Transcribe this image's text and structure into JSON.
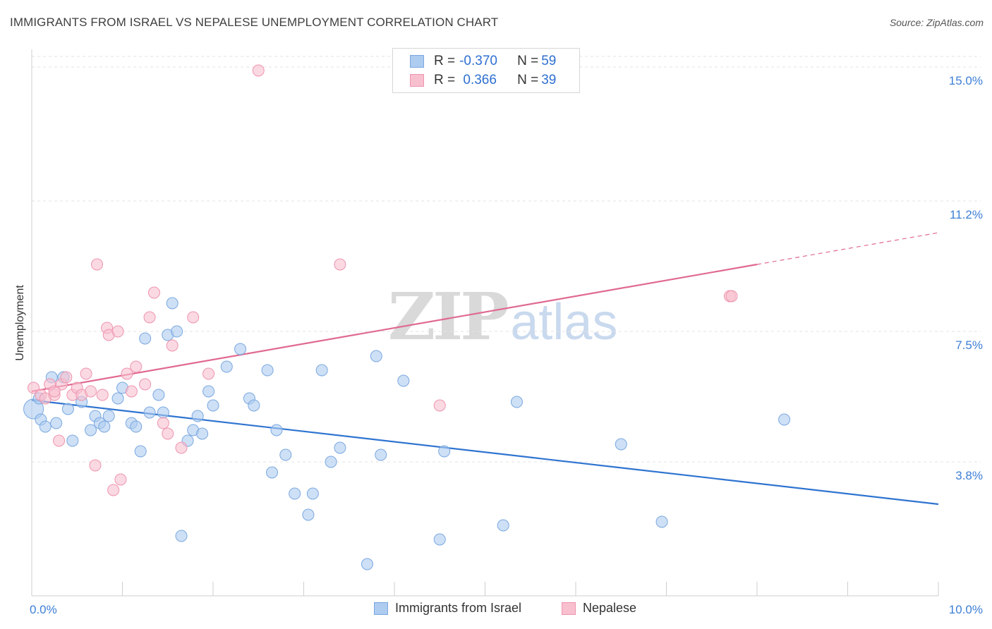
{
  "header": {
    "title": "IMMIGRANTS FROM ISRAEL VS NEPALESE UNEMPLOYMENT CORRELATION CHART",
    "source": "Source: ZipAtlas.com"
  },
  "legend": {
    "rows": [
      {
        "r_label": "R = ",
        "r_value": "-0.370",
        "n_label": "N = ",
        "n_value": "59"
      },
      {
        "r_label": "R = ",
        "r_value": " 0.366",
        "n_label": "N = ",
        "n_value": "39"
      }
    ]
  },
  "bottom_legend": {
    "israel": "Immigrants from Israel",
    "nepalese": "Nepalese"
  },
  "watermark": {
    "zip": "ZIP",
    "atlas": "atlas"
  },
  "colors": {
    "israel_fill": "#aecbf0",
    "israel_stroke": "#7aa8e0",
    "israel_line": "#2f74d0",
    "nepalese_fill": "#f8c0cf",
    "nepalese_stroke": "#ee94ae",
    "nepalese_line": "#e06990",
    "tick_text": "#3d7fd6",
    "grid": "#e3e3e3"
  },
  "chart_data": {
    "type": "scatter",
    "title": "IMMIGRANTS FROM ISRAEL VS NEPALESE UNEMPLOYMENT CORRELATION CHART",
    "xlabel": "",
    "ylabel": "Unemployment",
    "xlim": [
      0,
      10
    ],
    "ylim": [
      0,
      15.5
    ],
    "x_tick_labels": [
      {
        "value": 0,
        "label": "0.0%"
      },
      {
        "value": 10,
        "label": "10.0%"
      }
    ],
    "y_ticks": [
      {
        "value": 3.8,
        "label": "3.8%"
      },
      {
        "value": 7.5,
        "label": "7.5%"
      },
      {
        "value": 11.2,
        "label": "11.2%"
      },
      {
        "value": 15.0,
        "label": "15.0%"
      }
    ],
    "grid": true,
    "legend_position": "top-center",
    "series": [
      {
        "name": "Immigrants from Israel",
        "color": "#2f74d0",
        "points": [
          [
            0.02,
            5.3
          ],
          [
            0.1,
            5.0
          ],
          [
            0.15,
            4.8
          ],
          [
            0.22,
            6.2
          ],
          [
            0.27,
            4.9
          ],
          [
            0.35,
            6.2
          ],
          [
            0.4,
            5.3
          ],
          [
            0.45,
            4.4
          ],
          [
            0.55,
            5.5
          ],
          [
            0.65,
            4.7
          ],
          [
            0.7,
            5.1
          ],
          [
            0.75,
            4.9
          ],
          [
            0.8,
            4.8
          ],
          [
            0.85,
            5.1
          ],
          [
            0.95,
            5.6
          ],
          [
            1.0,
            5.9
          ],
          [
            1.1,
            4.9
          ],
          [
            1.15,
            4.8
          ],
          [
            1.2,
            4.1
          ],
          [
            1.25,
            7.3
          ],
          [
            1.3,
            5.2
          ],
          [
            1.4,
            5.7
          ],
          [
            1.45,
            5.2
          ],
          [
            1.5,
            7.4
          ],
          [
            1.55,
            8.3
          ],
          [
            1.6,
            7.5
          ],
          [
            1.65,
            1.7
          ],
          [
            1.72,
            4.4
          ],
          [
            1.78,
            4.7
          ],
          [
            1.83,
            5.1
          ],
          [
            1.88,
            4.6
          ],
          [
            1.95,
            5.8
          ],
          [
            2.0,
            5.4
          ],
          [
            2.15,
            6.5
          ],
          [
            2.3,
            7.0
          ],
          [
            2.4,
            5.6
          ],
          [
            2.45,
            5.4
          ],
          [
            2.6,
            6.4
          ],
          [
            2.65,
            3.5
          ],
          [
            2.7,
            4.7
          ],
          [
            2.8,
            4.0
          ],
          [
            2.9,
            2.9
          ],
          [
            3.05,
            2.3
          ],
          [
            3.1,
            2.9
          ],
          [
            3.2,
            6.4
          ],
          [
            3.3,
            3.8
          ],
          [
            3.4,
            4.2
          ],
          [
            3.7,
            0.9
          ],
          [
            3.8,
            6.8
          ],
          [
            3.85,
            4.0
          ],
          [
            4.1,
            6.1
          ],
          [
            4.5,
            1.6
          ],
          [
            4.55,
            4.1
          ],
          [
            5.2,
            2.0
          ],
          [
            5.35,
            5.5
          ],
          [
            6.5,
            4.3
          ],
          [
            6.95,
            2.1
          ],
          [
            8.3,
            5.0
          ],
          [
            0.08,
            5.6
          ]
        ],
        "trend": {
          "x": [
            0,
            10
          ],
          "y": [
            5.55,
            2.6
          ]
        }
      },
      {
        "name": "Nepalese",
        "color": "#e06990",
        "points": [
          [
            0.02,
            5.9
          ],
          [
            0.1,
            5.7
          ],
          [
            0.15,
            5.6
          ],
          [
            0.2,
            6.0
          ],
          [
            0.25,
            5.7
          ],
          [
            0.3,
            4.4
          ],
          [
            0.33,
            6.0
          ],
          [
            0.38,
            6.2
          ],
          [
            0.45,
            5.7
          ],
          [
            0.5,
            5.9
          ],
          [
            0.55,
            5.7
          ],
          [
            0.6,
            6.3
          ],
          [
            0.65,
            5.8
          ],
          [
            0.7,
            3.7
          ],
          [
            0.72,
            9.4
          ],
          [
            0.78,
            5.7
          ],
          [
            0.83,
            7.6
          ],
          [
            0.85,
            7.4
          ],
          [
            0.9,
            3.0
          ],
          [
            0.95,
            7.5
          ],
          [
            0.98,
            3.3
          ],
          [
            1.05,
            6.3
          ],
          [
            1.1,
            5.8
          ],
          [
            1.15,
            6.5
          ],
          [
            1.25,
            6.0
          ],
          [
            1.3,
            7.9
          ],
          [
            1.35,
            8.6
          ],
          [
            1.45,
            4.9
          ],
          [
            1.5,
            4.6
          ],
          [
            1.55,
            7.1
          ],
          [
            1.65,
            4.2
          ],
          [
            1.78,
            7.9
          ],
          [
            1.95,
            6.3
          ],
          [
            2.5,
            14.9
          ],
          [
            3.4,
            9.4
          ],
          [
            4.5,
            5.4
          ],
          [
            7.7,
            8.5
          ],
          [
            7.72,
            8.5
          ],
          [
            0.25,
            5.8
          ]
        ],
        "trend": {
          "x": [
            0,
            8.0
          ],
          "y": [
            5.8,
            9.4
          ]
        },
        "trend_extension": {
          "x": [
            8.0,
            10
          ],
          "y": [
            9.4,
            10.3
          ]
        }
      }
    ]
  }
}
